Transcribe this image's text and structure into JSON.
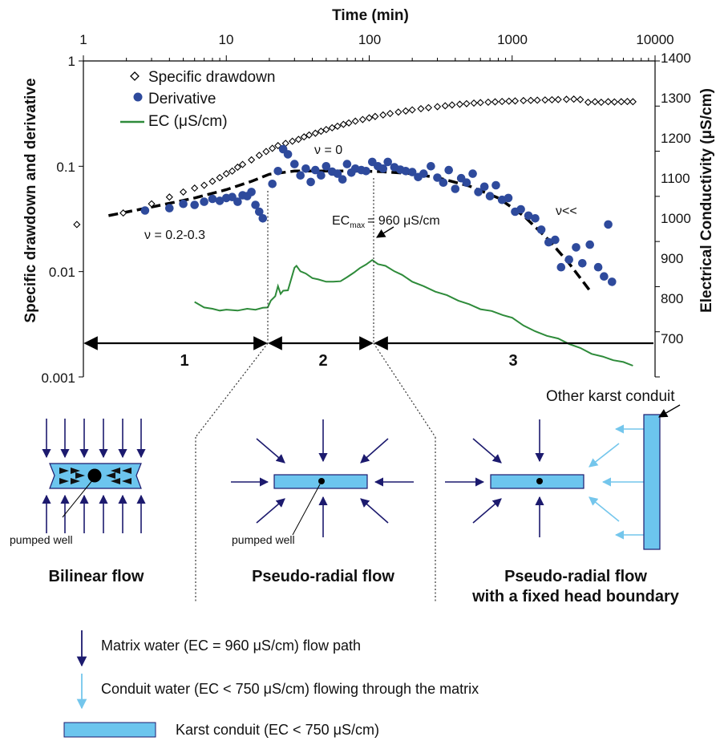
{
  "colors": {
    "drawdown_marker": "#000000",
    "derivative": "#2e4a9c",
    "ec_line": "#2e8b3a",
    "trend": "#000000",
    "conduit_fill": "#6cc5ee",
    "matrix_arrow": "#1c1a6e",
    "conduit_arrow": "#74c6ec"
  },
  "chart_data": {
    "type": "scatter",
    "xlabel": "Time (min)",
    "ylabel": "Specific drawdown and derivative",
    "y2label": "Electrical Conductivity (μS/cm)",
    "x_scale": "log",
    "y_scale": "log",
    "xlim": [
      1,
      10000
    ],
    "ylim": [
      0.001,
      1
    ],
    "y2lim": [
      700,
      1400
    ],
    "x_ticks": [
      "1",
      "10",
      "100",
      "1000",
      "10000"
    ],
    "y_ticks": [
      "0.001",
      "0.01",
      "0.1",
      "1"
    ],
    "y2_ticks": [
      "700",
      "800",
      "900",
      "1000",
      "1100",
      "1200",
      "1300",
      "1400"
    ],
    "legend": {
      "placement": "top-left",
      "entries": [
        "Specific drawdown",
        "Derivative",
        "EC (μS/cm)"
      ]
    },
    "annotations": {
      "slope_early": "ν = 0.2-0.3",
      "slope_mid": "ν = 0",
      "slope_late": "ν<<",
      "ec_max_prefix": "EC",
      "ec_max_sub": "max",
      "ec_max_suffix": "= 960 μS/cm"
    },
    "regions": [
      {
        "label": "1",
        "from": 1,
        "to": 20
      },
      {
        "label": "2",
        "from": 20,
        "to": 105
      },
      {
        "label": "3",
        "from": 105,
        "to": 8000
      }
    ],
    "series": [
      {
        "name": "Specific drawdown",
        "marker": "open-diamond",
        "x": [
          0.9,
          1.9,
          3.0,
          4.0,
          5.0,
          6.0,
          7.0,
          8.0,
          9.0,
          10,
          11,
          12,
          13,
          15,
          17,
          19,
          21,
          23,
          26,
          29,
          32,
          35,
          38,
          42,
          46,
          50,
          55,
          60,
          66,
          72,
          80,
          90,
          100,
          110,
          125,
          140,
          160,
          180,
          200,
          230,
          260,
          300,
          340,
          380,
          430,
          480,
          540,
          600,
          680,
          760,
          850,
          950,
          1050,
          1200,
          1350,
          1500,
          1700,
          1900,
          2100,
          2400,
          2700,
          3000,
          3400,
          3800,
          4200,
          4700,
          5200,
          5800,
          6400,
          7000
        ],
        "y": [
          0.028,
          0.036,
          0.044,
          0.051,
          0.057,
          0.062,
          0.066,
          0.072,
          0.078,
          0.085,
          0.09,
          0.098,
          0.104,
          0.115,
          0.127,
          0.138,
          0.148,
          0.157,
          0.165,
          0.173,
          0.18,
          0.19,
          0.198,
          0.206,
          0.215,
          0.223,
          0.232,
          0.24,
          0.25,
          0.258,
          0.268,
          0.278,
          0.288,
          0.297,
          0.307,
          0.317,
          0.327,
          0.335,
          0.343,
          0.352,
          0.36,
          0.368,
          0.375,
          0.382,
          0.388,
          0.393,
          0.398,
          0.402,
          0.406,
          0.409,
          0.412,
          0.415,
          0.417,
          0.42,
          0.422,
          0.424,
          0.426,
          0.428,
          0.43,
          0.432,
          0.434,
          0.43,
          0.405,
          0.41,
          0.405,
          0.41,
          0.408,
          0.41,
          0.412,
          0.41
        ]
      },
      {
        "name": "Derivative",
        "marker": "filled-circle",
        "x": [
          2.7,
          4.0,
          5.0,
          6.0,
          7.0,
          8.0,
          9.0,
          10,
          11,
          12,
          13,
          14,
          15,
          16,
          17,
          18,
          21,
          23,
          25,
          27,
          30,
          33,
          36,
          39,
          42,
          46,
          50,
          55,
          60,
          65,
          70,
          75,
          80,
          88,
          95,
          105,
          115,
          125,
          135,
          150,
          165,
          180,
          200,
          220,
          240,
          270,
          300,
          330,
          360,
          400,
          440,
          480,
          530,
          580,
          640,
          700,
          770,
          850,
          940,
          1050,
          1150,
          1300,
          1450,
          1600,
          1800,
          2000,
          2200,
          2500,
          2800,
          3100,
          3500,
          4000,
          4400,
          4700,
          5000
        ],
        "y": [
          0.038,
          0.04,
          0.044,
          0.043,
          0.046,
          0.049,
          0.047,
          0.05,
          0.051,
          0.046,
          0.053,
          0.052,
          0.057,
          0.043,
          0.037,
          0.032,
          0.068,
          0.09,
          0.145,
          0.13,
          0.105,
          0.082,
          0.095,
          0.071,
          0.092,
          0.082,
          0.1,
          0.089,
          0.085,
          0.075,
          0.105,
          0.087,
          0.095,
          0.092,
          0.09,
          0.11,
          0.1,
          0.095,
          0.11,
          0.098,
          0.093,
          0.09,
          0.088,
          0.079,
          0.085,
          0.1,
          0.078,
          0.07,
          0.092,
          0.061,
          0.077,
          0.07,
          0.085,
          0.057,
          0.064,
          0.052,
          0.066,
          0.048,
          0.05,
          0.037,
          0.039,
          0.034,
          0.032,
          0.025,
          0.019,
          0.02,
          0.011,
          0.013,
          0.017,
          0.012,
          0.018,
          0.011,
          0.009,
          0.028,
          0.008
        ]
      },
      {
        "name": "EC (μS/cm)",
        "marker": "line",
        "axis": "right",
        "x": [
          6.0,
          7.0,
          8.0,
          9.0,
          10,
          12,
          14,
          16,
          18,
          19.5,
          20.5,
          22,
          23,
          24,
          25,
          27,
          29,
          30,
          31,
          33,
          36,
          40,
          44,
          50,
          56,
          63,
          70,
          78,
          86,
          95,
          105,
          115,
          130,
          150,
          170,
          200,
          240,
          290,
          350,
          420,
          500,
          600,
          720,
          860,
          1000,
          1200,
          1450,
          1750,
          2100,
          2500,
          3000,
          3600,
          4300,
          5100,
          6000,
          7000
        ],
        "y": [
          865,
          855,
          850,
          848,
          848,
          848,
          850,
          850,
          852,
          855,
          868,
          880,
          900,
          885,
          890,
          893,
          925,
          943,
          945,
          935,
          928,
          920,
          915,
          912,
          910,
          913,
          920,
          932,
          940,
          950,
          958,
          951,
          945,
          935,
          925,
          912,
          900,
          890,
          880,
          870,
          860,
          851,
          845,
          838,
          830,
          815,
          800,
          792,
          784,
          774,
          763,
          752,
          744,
          738,
          732,
          726
        ]
      },
      {
        "name": "",
        "marker": "dashed-line",
        "x": [
          1.5,
          3,
          6,
          10,
          15,
          20,
          30,
          50,
          80,
          120,
          200,
          300,
          500,
          800,
          1200,
          1800,
          2500,
          3500
        ],
        "y": [
          0.034,
          0.041,
          0.05,
          0.06,
          0.072,
          0.084,
          0.09,
          0.09,
          0.09,
          0.089,
          0.085,
          0.078,
          0.065,
          0.05,
          0.034,
          0.02,
          0.012,
          0.0066
        ]
      }
    ]
  },
  "diagrams": {
    "panel1": {
      "title": "Bilinear flow",
      "well_label": "pumped well"
    },
    "panel2": {
      "title": "Pseudo-radial flow",
      "well_label": "pumped well"
    },
    "panel3": {
      "title_line1": "Pseudo-radial flow",
      "title_line2": "with a fixed head boundary",
      "other_conduit_label": "Other karst conduit"
    }
  },
  "key": {
    "matrix": "Matrix water (EC = 960 μS/cm) flow path",
    "conduit_water": "Conduit water (EC < 750 μS/cm) flowing through the matrix",
    "karst_conduit": "Karst conduit (EC < 750 μS/cm)"
  }
}
